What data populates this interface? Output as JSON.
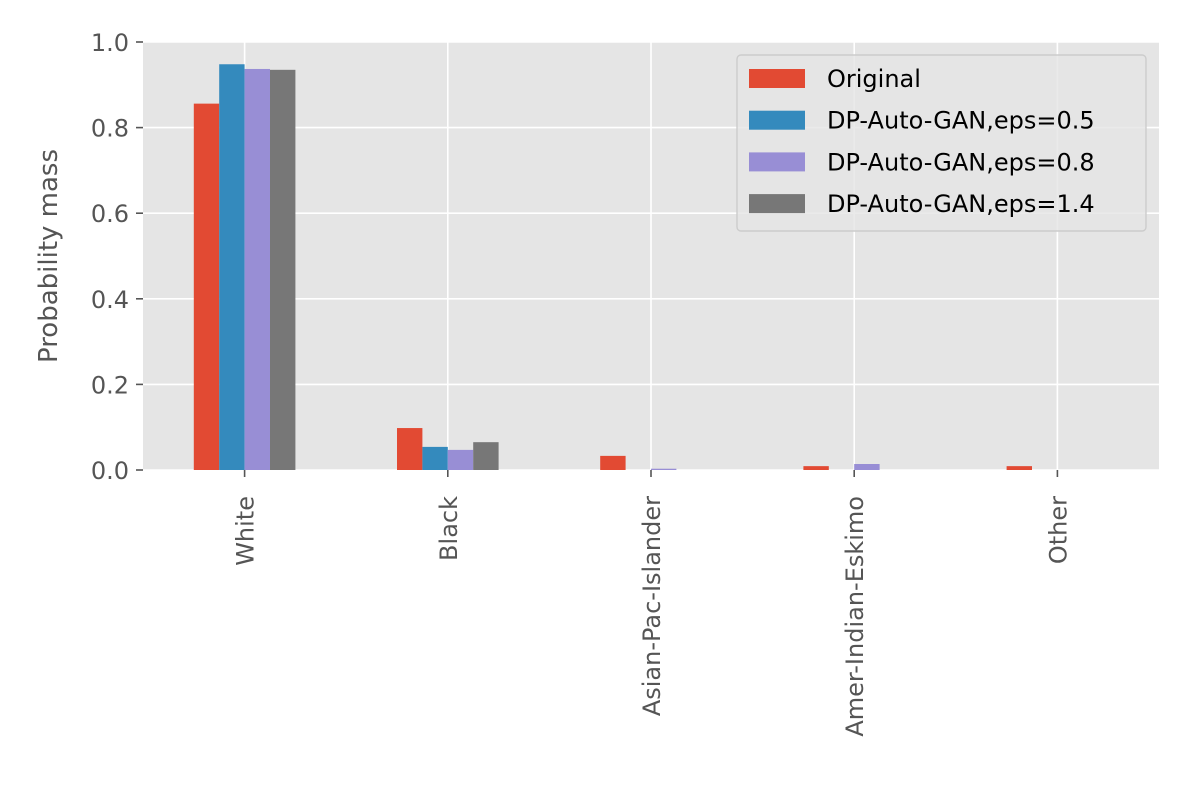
{
  "chart_data": {
    "type": "bar",
    "xlabel": "",
    "ylabel": "Probability mass",
    "ylim": [
      0,
      1.0
    ],
    "yticks": [
      "0.0",
      "0.2",
      "0.4",
      "0.6",
      "0.8",
      "1.0"
    ],
    "grid": true,
    "legend_position": "top-right",
    "categories": [
      "White",
      "Black",
      "Asian-Pac-Islander",
      "Amer-Indian-Eskimo",
      "Other"
    ],
    "series": [
      {
        "name": "Original",
        "color": "#E24A33",
        "values": [
          0.856,
          0.098,
          0.033,
          0.009,
          0.009
        ]
      },
      {
        "name": "DP-Auto-GAN,eps=0.5",
        "color": "#348ABD",
        "values": [
          0.948,
          0.054,
          0.0,
          0.0,
          0.0
        ]
      },
      {
        "name": "DP-Auto-GAN,eps=0.8",
        "color": "#988ED5",
        "values": [
          0.937,
          0.047,
          0.003,
          0.014,
          0.0
        ]
      },
      {
        "name": "DP-Auto-GAN,eps=1.4",
        "color": "#777777",
        "values": [
          0.935,
          0.065,
          0.0,
          0.0,
          0.0
        ]
      }
    ]
  }
}
